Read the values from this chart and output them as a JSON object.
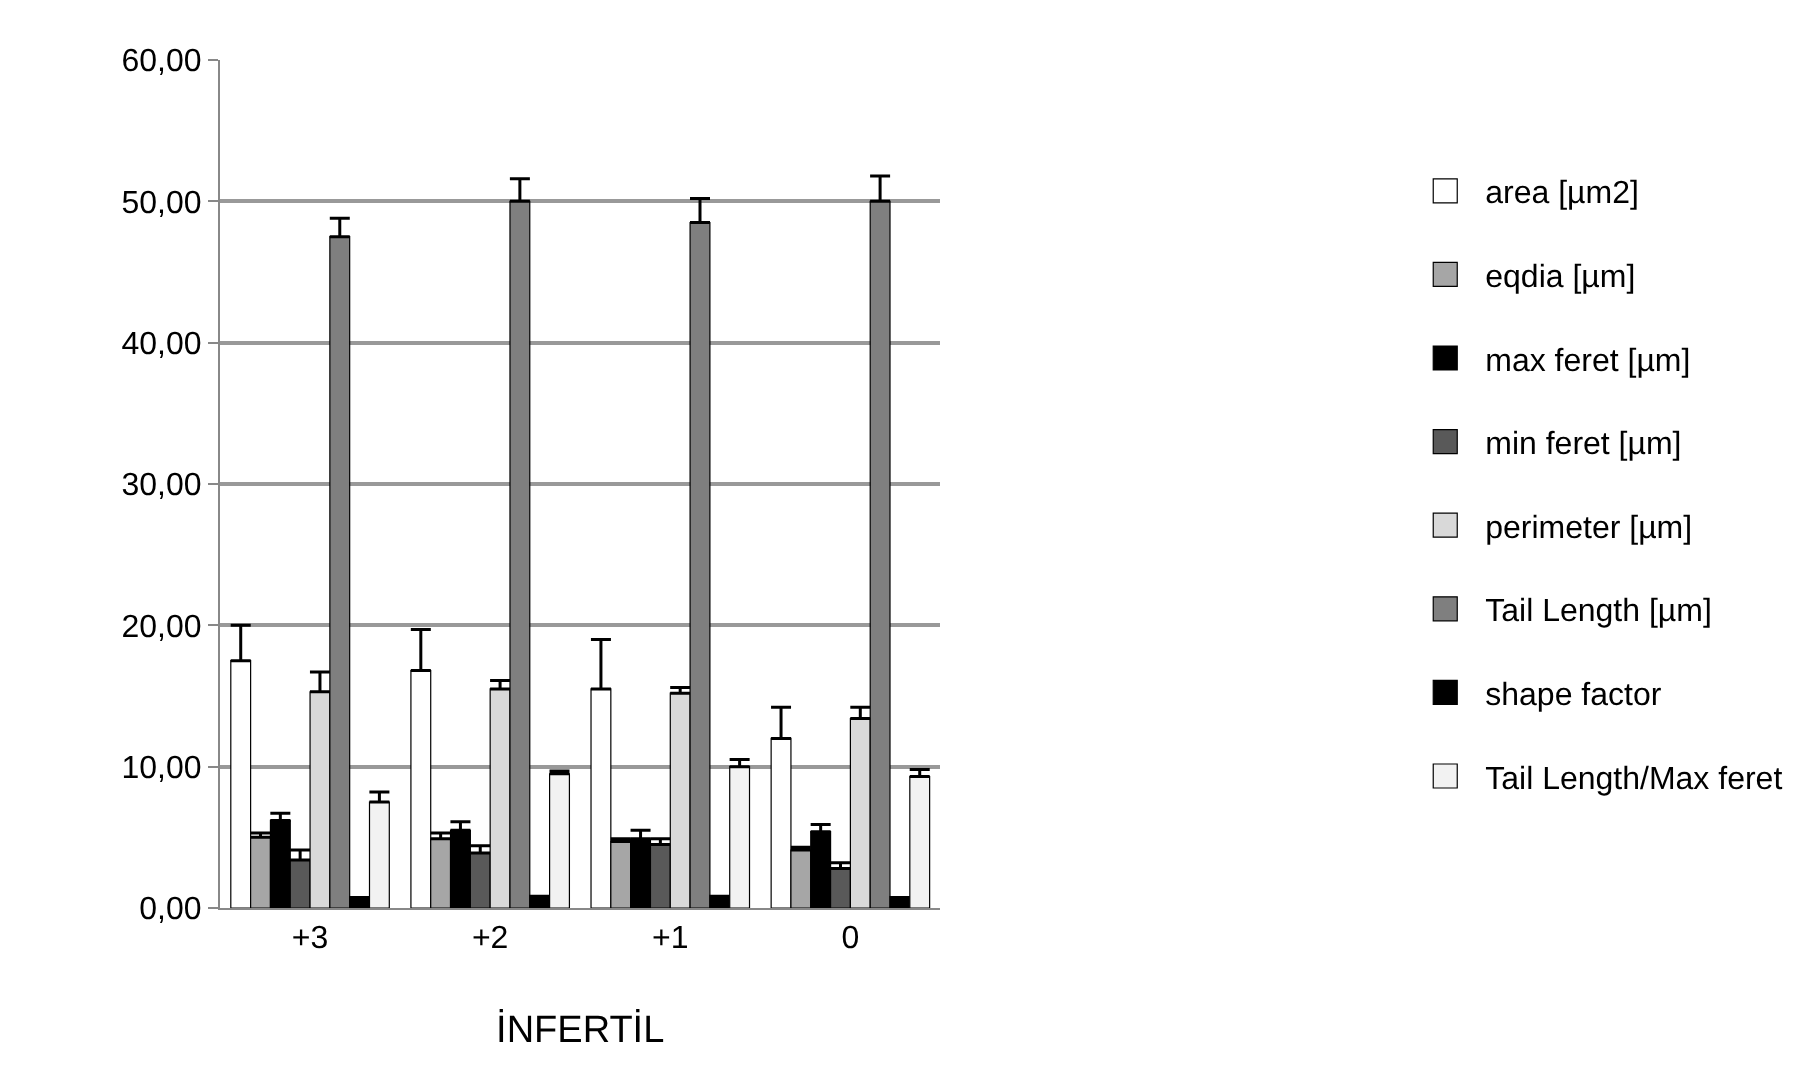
{
  "chart_data": {
    "type": "bar",
    "xlabel": "İNFERTİL",
    "categories": [
      "+3",
      "+2",
      "+1",
      "0"
    ],
    "series": [
      {
        "name": "area [µm2]",
        "color": "#ffffff",
        "values": [
          17.5,
          16.8,
          15.5,
          12.0
        ],
        "errors": [
          [
            17.5,
            20.0
          ],
          [
            16.8,
            19.7
          ],
          [
            15.5,
            19.0
          ],
          [
            12.0,
            14.2
          ]
        ]
      },
      {
        "name": "eqdia [µm]",
        "color": "#a6a6a6",
        "values": [
          5.0,
          4.9,
          4.7,
          4.1
        ],
        "errors": [
          [
            5.0,
            5.3
          ],
          [
            4.9,
            5.3
          ],
          [
            4.7,
            4.9
          ],
          [
            4.1,
            4.3
          ]
        ]
      },
      {
        "name": "max feret [µm]",
        "color": "#000000",
        "values": [
          6.2,
          5.5,
          4.9,
          5.4
        ],
        "errors": [
          [
            6.2,
            6.7
          ],
          [
            5.5,
            6.1
          ],
          [
            4.9,
            5.5
          ],
          [
            5.4,
            5.9
          ]
        ]
      },
      {
        "name": "min feret [µm]",
        "color": "#595959",
        "values": [
          3.4,
          3.9,
          4.5,
          2.8
        ],
        "errors": [
          [
            3.4,
            4.1
          ],
          [
            3.9,
            4.4
          ],
          [
            4.5,
            4.9
          ],
          [
            2.8,
            3.2
          ]
        ]
      },
      {
        "name": "perimeter [µm]",
        "color": "#d9d9d9",
        "values": [
          15.3,
          15.5,
          15.2,
          13.4
        ],
        "errors": [
          [
            15.3,
            16.7
          ],
          [
            15.5,
            16.1
          ],
          [
            15.2,
            15.6
          ],
          [
            13.4,
            14.2
          ]
        ]
      },
      {
        "name": "Tail Length [µm]",
        "color": "#7f7f7f",
        "values": [
          47.5,
          50.0,
          48.5,
          50.0
        ],
        "errors": [
          [
            47.5,
            48.8
          ],
          [
            50.0,
            51.6
          ],
          [
            48.5,
            50.2
          ],
          [
            50.0,
            51.8
          ]
        ]
      },
      {
        "name": "shape factor",
        "color": "#000000",
        "values": [
          0.8,
          0.9,
          0.9,
          0.8
        ],
        "errors": [
          null,
          null,
          null,
          null
        ]
      },
      {
        "name": "Tail Length/Max feret",
        "color": "#f2f2f2",
        "values": [
          7.5,
          9.5,
          10.0,
          9.3
        ],
        "errors": [
          [
            7.5,
            8.2
          ],
          [
            9.5,
            9.7
          ],
          [
            10.0,
            10.5
          ],
          [
            9.3,
            9.8
          ]
        ]
      }
    ],
    "ylim": [
      0,
      60
    ],
    "yticks": [
      {
        "value": 0,
        "label": "0,00"
      },
      {
        "value": 10,
        "label": "10,00"
      },
      {
        "value": 20,
        "label": "20,00"
      },
      {
        "value": 30,
        "label": "30,00"
      },
      {
        "value": 40,
        "label": "40,00"
      },
      {
        "value": 50,
        "label": "50,00"
      },
      {
        "value": 60,
        "label": "60,00"
      }
    ],
    "grid": "y",
    "legend": "right"
  }
}
